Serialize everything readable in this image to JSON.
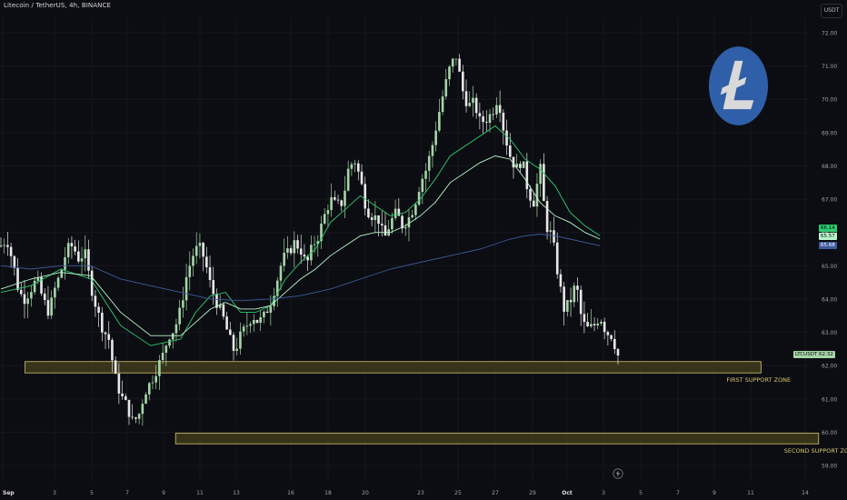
{
  "header": {
    "title": "Litecoin / TetherUS, 4h, BINANCE",
    "unit": "USDT"
  },
  "colors": {
    "background": "#0c0d12",
    "candle_up": "#a5d6a7",
    "candle_down": "#e8e8e8",
    "ema_fast": "#2ecc71",
    "ema_mid": "#b9f6ca",
    "ema_slow": "#3d5a9e",
    "zone_fill": "#5a5320",
    "zone_border": "#d8c66d",
    "logo_bg": "#2f5fa8",
    "logo_fg": "#d9d9d9"
  },
  "icons": {
    "logo": "litecoin-logo-icon",
    "bolt": "lightning-icon"
  },
  "chart_data": {
    "type": "candlestick",
    "ylim": [
      58.8,
      72.4
    ],
    "yticks": [
      "72.00",
      "71.00",
      "70.00",
      "69.00",
      "68.00",
      "67.00",
      "66.00",
      "65.00",
      "64.00",
      "63.00",
      "62.00",
      "61.00",
      "60.00",
      "59.00"
    ],
    "xticks": [
      "Sep",
      "3",
      "5",
      "7",
      "9",
      "11",
      "13",
      "16",
      "18",
      "20",
      "23",
      "25",
      "27",
      "29",
      "Oct",
      "3",
      "5",
      "7",
      "9",
      "11",
      "14"
    ],
    "bold_xticks": [
      "Sep",
      "Oct"
    ],
    "n_candles": 184,
    "close_path": [
      [
        0,
        65.6
      ],
      [
        4,
        65.8
      ],
      [
        8,
        65.1
      ],
      [
        12,
        64.2
      ],
      [
        16,
        64.0
      ],
      [
        20,
        64.3
      ],
      [
        24,
        64.6
      ],
      [
        28,
        64.0
      ],
      [
        32,
        63.6
      ],
      [
        36,
        64.3
      ],
      [
        40,
        64.8
      ],
      [
        44,
        65.5
      ],
      [
        48,
        65.6
      ],
      [
        52,
        65.2
      ],
      [
        56,
        65.4
      ],
      [
        60,
        64.4
      ],
      [
        64,
        63.7
      ],
      [
        68,
        63.1
      ],
      [
        72,
        62.8
      ],
      [
        76,
        61.7
      ],
      [
        80,
        61.1
      ],
      [
        84,
        60.8
      ],
      [
        88,
        60.3
      ],
      [
        92,
        60.5
      ],
      [
        96,
        61.2
      ],
      [
        100,
        61.5
      ],
      [
        104,
        61.9
      ],
      [
        108,
        62.3
      ],
      [
        112,
        62.9
      ],
      [
        116,
        63.1
      ],
      [
        120,
        63.7
      ],
      [
        124,
        64.7
      ],
      [
        128,
        65.3
      ],
      [
        132,
        65.6
      ],
      [
        136,
        65.2
      ],
      [
        140,
        64.4
      ],
      [
        144,
        63.9
      ],
      [
        148,
        63.5
      ],
      [
        152,
        62.9
      ],
      [
        156,
        62.4
      ],
      [
        160,
        62.9
      ],
      [
        164,
        63.2
      ],
      [
        168,
        63.5
      ],
      [
        172,
        63.3
      ],
      [
        176,
        63.5
      ],
      [
        180,
        63.9
      ],
      [
        184,
        64.5
      ],
      [
        188,
        65.2
      ],
      [
        192,
        65.4
      ],
      [
        196,
        65.7
      ],
      [
        200,
        65.5
      ],
      [
        204,
        65.0
      ],
      [
        208,
        65.6
      ],
      [
        212,
        65.9
      ],
      [
        216,
        66.5
      ],
      [
        220,
        67.0
      ],
      [
        224,
        66.8
      ],
      [
        228,
        66.9
      ],
      [
        232,
        67.9
      ],
      [
        236,
        68.2
      ],
      [
        240,
        67.6
      ],
      [
        244,
        66.7
      ],
      [
        248,
        66.5
      ],
      [
        252,
        66.4
      ],
      [
        256,
        65.8
      ],
      [
        260,
        66.3
      ],
      [
        264,
        66.6
      ],
      [
        268,
        66.2
      ],
      [
        272,
        66.4
      ],
      [
        276,
        66.8
      ],
      [
        280,
        67.5
      ],
      [
        284,
        67.9
      ],
      [
        288,
        68.6
      ],
      [
        292,
        69.5
      ],
      [
        296,
        70.3
      ],
      [
        300,
        71.0
      ],
      [
        304,
        71.3
      ],
      [
        308,
        70.3
      ],
      [
        312,
        69.8
      ],
      [
        316,
        69.9
      ],
      [
        320,
        69.3
      ],
      [
        324,
        69.4
      ],
      [
        328,
        69.6
      ],
      [
        332,
        70.1
      ],
      [
        336,
        69.0
      ],
      [
        340,
        68.3
      ],
      [
        344,
        67.9
      ],
      [
        348,
        68.2
      ],
      [
        352,
        67.2
      ],
      [
        356,
        66.9
      ],
      [
        360,
        68.0
      ],
      [
        364,
        66.2
      ],
      [
        368,
        65.9
      ],
      [
        372,
        64.7
      ],
      [
        376,
        63.7
      ],
      [
        380,
        63.9
      ],
      [
        384,
        64.5
      ],
      [
        388,
        63.3
      ],
      [
        392,
        63.1
      ],
      [
        396,
        63.2
      ],
      [
        400,
        63.5
      ],
      [
        404,
        63.0
      ],
      [
        408,
        62.9
      ],
      [
        412,
        62.3
      ]
    ],
    "series": [
      {
        "name": "",
        "color_key": "ema_fast",
        "points": [
          [
            0,
            64.2
          ],
          [
            20,
            64.4
          ],
          [
            40,
            64.9
          ],
          [
            60,
            64.6
          ],
          [
            80,
            63.2
          ],
          [
            100,
            62.6
          ],
          [
            120,
            62.8
          ],
          [
            130,
            63.6
          ],
          [
            140,
            64.1
          ],
          [
            150,
            64.2
          ],
          [
            160,
            63.6
          ],
          [
            170,
            63.6
          ],
          [
            180,
            63.8
          ],
          [
            190,
            64.6
          ],
          [
            200,
            65.1
          ],
          [
            210,
            65.5
          ],
          [
            220,
            66.3
          ],
          [
            230,
            66.7
          ],
          [
            240,
            67.1
          ],
          [
            250,
            66.8
          ],
          [
            260,
            66.5
          ],
          [
            270,
            66.6
          ],
          [
            280,
            67.0
          ],
          [
            290,
            67.6
          ],
          [
            300,
            68.3
          ],
          [
            310,
            68.6
          ],
          [
            320,
            68.9
          ],
          [
            330,
            69.2
          ],
          [
            340,
            68.8
          ],
          [
            350,
            68.2
          ],
          [
            360,
            67.9
          ],
          [
            370,
            67.4
          ],
          [
            380,
            66.6
          ],
          [
            390,
            66.2
          ],
          [
            400,
            65.9
          ]
        ]
      },
      {
        "name": "",
        "color_key": "ema_mid",
        "points": [
          [
            0,
            64.3
          ],
          [
            20,
            64.6
          ],
          [
            40,
            64.8
          ],
          [
            60,
            64.7
          ],
          [
            80,
            63.6
          ],
          [
            100,
            62.9
          ],
          [
            120,
            62.9
          ],
          [
            130,
            63.3
          ],
          [
            140,
            63.7
          ],
          [
            150,
            63.9
          ],
          [
            160,
            63.7
          ],
          [
            170,
            63.7
          ],
          [
            180,
            63.8
          ],
          [
            190,
            64.2
          ],
          [
            200,
            64.6
          ],
          [
            210,
            64.9
          ],
          [
            220,
            65.3
          ],
          [
            230,
            65.6
          ],
          [
            240,
            65.9
          ],
          [
            250,
            66.0
          ],
          [
            260,
            66.0
          ],
          [
            270,
            66.2
          ],
          [
            280,
            66.5
          ],
          [
            290,
            66.9
          ],
          [
            300,
            67.5
          ],
          [
            310,
            67.8
          ],
          [
            320,
            68.1
          ],
          [
            330,
            68.3
          ],
          [
            340,
            68.2
          ],
          [
            350,
            67.6
          ],
          [
            360,
            66.9
          ],
          [
            370,
            66.5
          ],
          [
            380,
            66.3
          ],
          [
            390,
            66.0
          ],
          [
            400,
            65.8
          ]
        ]
      },
      {
        "name": "",
        "color_key": "ema_slow",
        "points": [
          [
            0,
            65.0
          ],
          [
            20,
            64.9
          ],
          [
            40,
            65.0
          ],
          [
            60,
            65.0
          ],
          [
            80,
            64.6
          ],
          [
            100,
            64.4
          ],
          [
            120,
            64.2
          ],
          [
            140,
            64.0
          ],
          [
            160,
            63.95
          ],
          [
            180,
            64.0
          ],
          [
            200,
            64.1
          ],
          [
            220,
            64.3
          ],
          [
            240,
            64.6
          ],
          [
            260,
            64.9
          ],
          [
            280,
            65.1
          ],
          [
            300,
            65.3
          ],
          [
            320,
            65.5
          ],
          [
            340,
            65.8
          ],
          [
            350,
            65.9
          ],
          [
            360,
            65.95
          ],
          [
            370,
            65.9
          ],
          [
            380,
            65.8
          ],
          [
            390,
            65.7
          ],
          [
            400,
            65.6
          ]
        ]
      }
    ],
    "support_zones": [
      {
        "label": "FIRST SUPPORT ZONE",
        "low": 61.78,
        "high": 62.12,
        "x_start_day": 1.2,
        "x_end_day": 40.8
      },
      {
        "label": "SECOND SUPPORT ZONE",
        "low": 59.65,
        "high": 59.97,
        "x_start_day": 9.3,
        "x_end_day": 43.9
      }
    ],
    "last_values": [
      {
        "text": "66.14",
        "color_key": "ema_fast"
      },
      {
        "text": "65.57",
        "color_key": "ema_mid"
      },
      {
        "text": "65.68",
        "color_key": "ema_slow"
      },
      {
        "text": "LTCUSDT 62.32",
        "color_key": "candle_up"
      }
    ]
  }
}
